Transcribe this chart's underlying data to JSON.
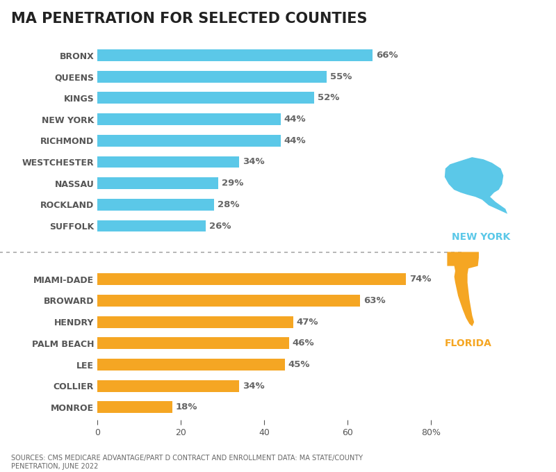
{
  "title": "MA PENETRATION FOR SELECTED COUNTIES",
  "ny_counties": [
    "BRONX",
    "QUEENS",
    "KINGS",
    "NEW YORK",
    "RICHMOND",
    "WESTCHESTER",
    "NASSAU",
    "ROCKLAND",
    "SUFFOLK"
  ],
  "ny_values": [
    66,
    55,
    52,
    44,
    44,
    34,
    29,
    28,
    26
  ],
  "fl_counties": [
    "MIAMI-DADE",
    "BROWARD",
    "HENDRY",
    "PALM BEACH",
    "LEE",
    "COLLIER",
    "MONROE"
  ],
  "fl_values": [
    74,
    63,
    47,
    46,
    45,
    34,
    18
  ],
  "ny_color": "#5BC8E8",
  "fl_color": "#F5A623",
  "value_label_color": "#666666",
  "ytick_color": "#555555",
  "title_color": "#222222",
  "bg_color": "#FFFFFF",
  "source_text": "SOURCES: CMS MEDICARE ADVANTAGE/PART D CONTRACT AND ENROLLMENT DATA: MA STATE/COUNTY\nPENETRATION, JUNE 2022",
  "xlim": [
    0,
    80
  ],
  "xticks": [
    0,
    20,
    40,
    60,
    80
  ],
  "divider_color": "#aaaaaa",
  "ny_state_label": "NEW YORK",
  "fl_state_label": "FLORIDA"
}
